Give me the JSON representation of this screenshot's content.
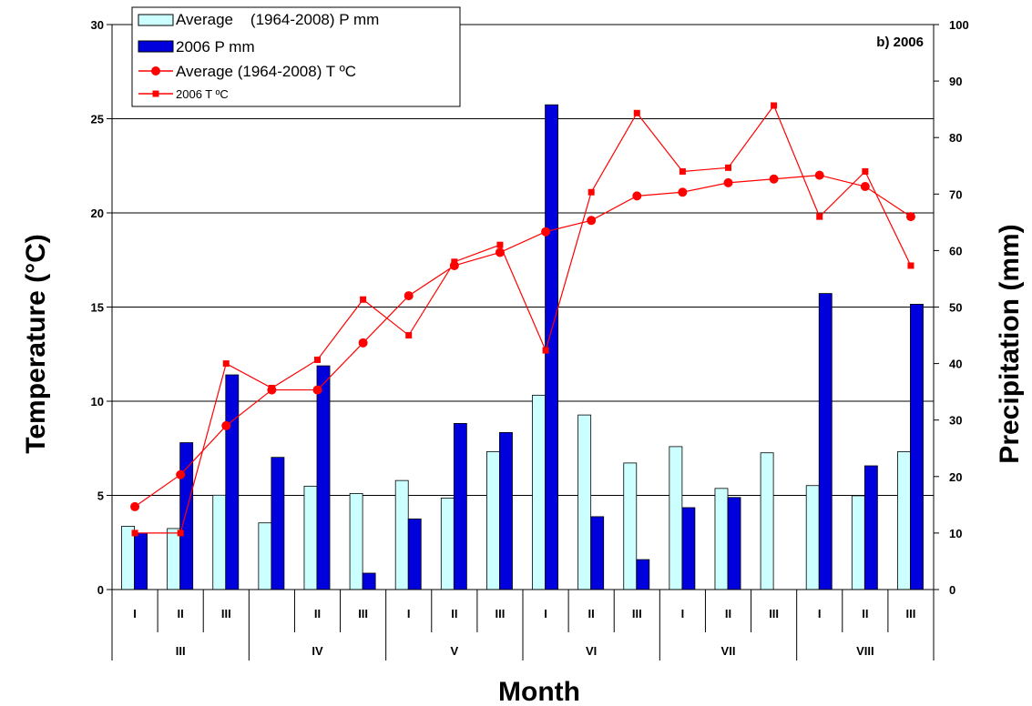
{
  "chart_data": {
    "type": "bar",
    "panel_label": "b)  2006",
    "xlabel": "Month",
    "ylabel_left": "Temperature (°C)",
    "ylabel_right": "Precipitation (mm)",
    "ylim_left": [
      0,
      30
    ],
    "yticks_left": [
      "0",
      "5",
      "10",
      "15",
      "20",
      "25",
      "30"
    ],
    "ylim_right": [
      0,
      100
    ],
    "yticks_right": [
      "0",
      "10",
      "20",
      "30",
      "40",
      "50",
      "60",
      "70",
      "80",
      "90",
      "100"
    ],
    "grid": true,
    "legend_position": "top-left",
    "decades": [
      "I",
      "II",
      "III",
      "",
      "II",
      "III",
      "I",
      "II",
      "III",
      "I",
      "II",
      "III",
      "I",
      "II",
      "III",
      "I",
      "II",
      "III"
    ],
    "months": [
      "III",
      "IV",
      "V",
      "VI",
      "VII",
      "VIII"
    ],
    "bar_series": [
      {
        "name": "Average    (1964-2008) P mm",
        "color": "#ccffff",
        "axis": "right",
        "values": [
          11.2,
          10.8,
          16.7,
          11.8,
          18.3,
          17,
          19.3,
          16.2,
          24.4,
          34.4,
          30.9,
          22.4,
          25.3,
          17.9,
          24.2,
          18.4,
          16.6,
          24.4
        ]
      },
      {
        "name": "2006 P mm",
        "color": "#0000dd",
        "axis": "right",
        "values": [
          10,
          26,
          38,
          23.4,
          39.6,
          2.9,
          12.5,
          29.4,
          27.8,
          85.8,
          12.9,
          5.3,
          14.5,
          16.3,
          0,
          52.4,
          21.9,
          50.5
        ]
      }
    ],
    "line_series": [
      {
        "name": "Average (1964-2008) T ºC",
        "color": "#ff0000",
        "marker": "circle",
        "axis": "left",
        "values": [
          4.4,
          6.1,
          8.7,
          10.6,
          10.6,
          13.1,
          15.6,
          17.2,
          17.9,
          19,
          19.6,
          20.9,
          21.1,
          21.6,
          21.8,
          22,
          21.4,
          19.8
        ]
      },
      {
        "name": "2006 T ºC",
        "color": "#ff0000",
        "marker": "square",
        "axis": "left",
        "values": [
          3,
          3,
          12,
          10.7,
          12.2,
          15.4,
          13.5,
          17.4,
          18.3,
          12.7,
          21.1,
          25.3,
          22.2,
          22.4,
          25.7,
          19.8,
          22.2,
          17.2
        ]
      }
    ]
  }
}
